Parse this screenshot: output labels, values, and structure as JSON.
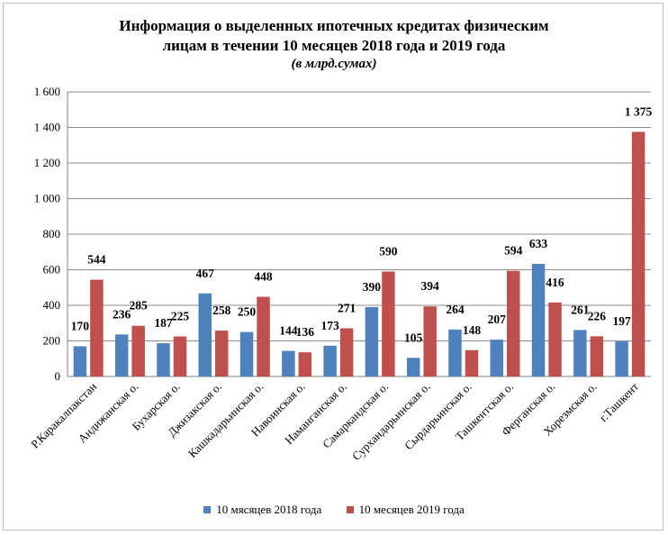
{
  "chart_data": {
    "type": "bar",
    "title_line1": "Информация о выделенных ипотечных кредитах физическим",
    "title_line2": "лицам в течении 10 месяцев 2018 года и 2019 года",
    "subtitle": "(в млрд.сумах)",
    "categories": [
      "Р.Каракалпакстан",
      "Андижанская о.",
      "Бухарская о.",
      "Джизакская о.",
      "Кашкадарьинская о.",
      "Навоинская о.",
      "Наманганская о.",
      "Самаркандская о.",
      "Сурхандарьинская о.",
      "Сырдарьинская о.",
      "Ташкентская о.",
      "Ферганская о.",
      "Хорезмская о.",
      "г.Ташкент"
    ],
    "series": [
      {
        "name": "10 мясяцев 2018  года",
        "color": "#4f81bd",
        "values": [
          170,
          236,
          187,
          467,
          250,
          144,
          173,
          390,
          105,
          264,
          207,
          633,
          261,
          197
        ],
        "labels": [
          "170",
          "236",
          "187",
          "467",
          "250",
          "144",
          "173",
          "390",
          "105",
          "264",
          "207",
          "633",
          "261",
          "197"
        ]
      },
      {
        "name": "10 месяцев 2019  года",
        "color": "#c0504d",
        "values": [
          544,
          285,
          225,
          258,
          448,
          136,
          271,
          590,
          394,
          148,
          594,
          416,
          226,
          1375
        ],
        "labels": [
          "544",
          "285",
          "225",
          "258",
          "448",
          "136",
          "271",
          "590",
          "394",
          "148",
          "594",
          "416",
          "226",
          "1 375"
        ]
      }
    ],
    "y_ticks": [
      "0",
      "200",
      "400",
      "600",
      "800",
      "1 000",
      "1 200",
      "1 400",
      "1 600"
    ],
    "ylim": [
      0,
      1600
    ],
    "grid": true,
    "legend_position": "bottom"
  }
}
